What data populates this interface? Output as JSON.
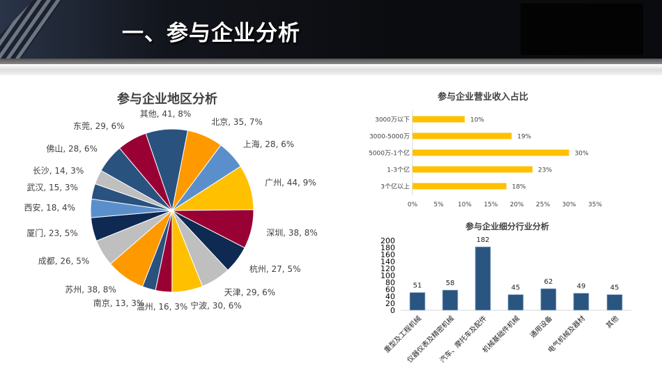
{
  "header": {
    "title": "一、参与企业分析"
  },
  "chart_data": [
    {
      "type": "pie",
      "title": "参与企业地区分析",
      "slices": [
        {
          "label": "其他",
          "value": 41,
          "pct": "8%",
          "color": "#2a527f"
        },
        {
          "label": "北京",
          "value": 35,
          "pct": "7%",
          "color": "#ff9900"
        },
        {
          "label": "上海",
          "value": 28,
          "pct": "6%",
          "color": "#5b8fcb"
        },
        {
          "label": "广州",
          "value": 44,
          "pct": "9%",
          "color": "#ffc000"
        },
        {
          "label": "深圳",
          "value": 38,
          "pct": "8%",
          "color": "#990033"
        },
        {
          "label": "杭州",
          "value": 27,
          "pct": "5%",
          "color": "#0e2a52"
        },
        {
          "label": "天津",
          "value": 29,
          "pct": "6%",
          "color": "#bfbfbf"
        },
        {
          "label": "宁波",
          "value": 30,
          "pct": "6%",
          "color": "#ffc000"
        },
        {
          "label": "温州",
          "value": 16,
          "pct": "3%",
          "color": "#990033"
        },
        {
          "label": "南京",
          "value": 13,
          "pct": "3%",
          "color": "#2a527f"
        },
        {
          "label": "苏州",
          "value": 38,
          "pct": "8%",
          "color": "#ff9900"
        },
        {
          "label": "成都",
          "value": 26,
          "pct": "5%",
          "color": "#bfbfbf"
        },
        {
          "label": "厦门",
          "value": 23,
          "pct": "5%",
          "color": "#0e2a52"
        },
        {
          "label": "西安",
          "value": 18,
          "pct": "4%",
          "color": "#5b8fcb"
        },
        {
          "label": "武汉",
          "value": 15,
          "pct": "3%",
          "color": "#2a527f"
        },
        {
          "label": "长沙",
          "value": 14,
          "pct": "3%",
          "color": "#bfbfbf"
        },
        {
          "label": "佛山",
          "value": 28,
          "pct": "6%",
          "color": "#2a527f"
        },
        {
          "label": "东莞",
          "value": 29,
          "pct": "6%",
          "color": "#990033"
        }
      ]
    },
    {
      "type": "bar",
      "orientation": "horizontal",
      "title": "参与企业营业收入占比",
      "categories": [
        "3000万以下",
        "3000-5000万",
        "5000万-1个亿",
        "1-3个亿",
        "3个亿以上"
      ],
      "values": [
        10,
        19,
        30,
        23,
        18
      ],
      "data_labels": [
        "10%",
        "19%",
        "30%",
        "23%",
        "18%"
      ],
      "xlim": [
        0,
        35
      ],
      "xticks": [
        "0%",
        "5%",
        "10%",
        "15%",
        "20%",
        "25%",
        "30%",
        "35%"
      ],
      "color": "#ffc000",
      "grid": false
    },
    {
      "type": "bar",
      "title": "参与企业细分行业分析",
      "categories": [
        "重型及工程机械",
        "仪器仪表及精密机械",
        "汽车、摩托车及配件",
        "机械基础件机械",
        "通用设备",
        "电气机械及器材",
        "其他"
      ],
      "values": [
        51,
        58,
        182,
        45,
        62,
        49,
        45
      ],
      "ylim": [
        0,
        200
      ],
      "yticks": [
        "0",
        "20",
        "40",
        "60",
        "80",
        "100",
        "120",
        "140",
        "160",
        "180",
        "200"
      ],
      "color": "#2a5580",
      "grid": false
    }
  ]
}
